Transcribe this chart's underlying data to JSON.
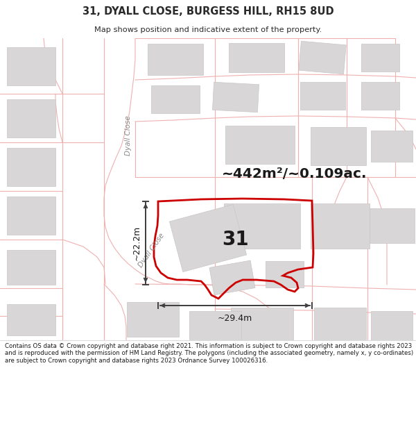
{
  "title": "31, DYALL CLOSE, BURGESS HILL, RH15 8UD",
  "subtitle": "Map shows position and indicative extent of the property.",
  "area_text": "~442m²/~0.109ac.",
  "number_label": "31",
  "dim_width": "~29.4m",
  "dim_height": "~22.2m",
  "road_label_v": "Dyall Close",
  "road_label_d": "Dyall Close",
  "footer": "Contains OS data © Crown copyright and database right 2021. This information is subject to Crown copyright and database rights 2023 and is reproduced with the permission of HM Land Registry. The polygons (including the associated geometry, namely x, y co-ordinates) are subject to Crown copyright and database rights 2023 Ordnance Survey 100026316.",
  "map_bg": "#f5f3f3",
  "building_fill": "#d8d6d6",
  "building_stroke": "#c8c6c6",
  "road_line_color": "#f0b0b0",
  "plot_stroke": "#cc0000",
  "title_color": "#2a2a2a",
  "footer_color": "#1a1a1a",
  "arrow_color": "#404040",
  "label_color": "#888888"
}
